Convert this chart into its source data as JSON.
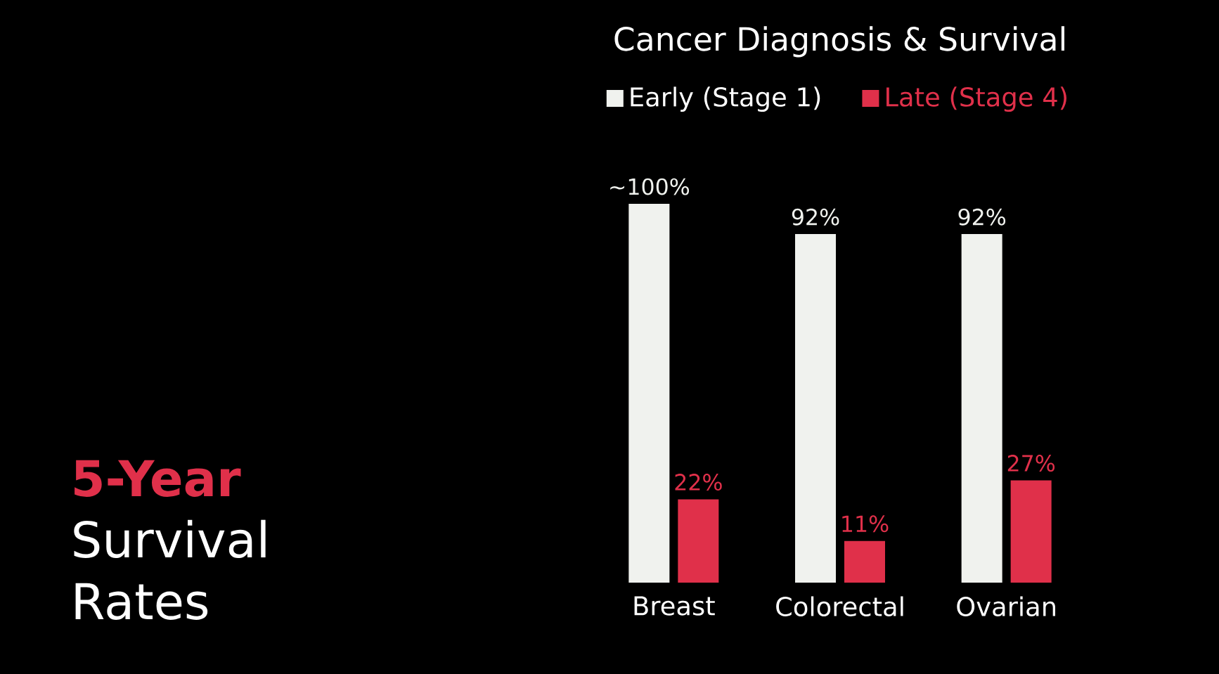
{
  "chart_data": {
    "type": "bar",
    "title": "Cancer Diagnosis & Survival",
    "categories": [
      "Breast",
      "Colorectal",
      "Ovarian"
    ],
    "series": [
      {
        "name": "Early (Stage 1)",
        "color": "#f0f2ee",
        "values": [
          100,
          92,
          92
        ],
        "value_labels": [
          "~100%",
          "92%",
          "92%"
        ]
      },
      {
        "name": "Late (Stage 4)",
        "color": "#e0304a",
        "values": [
          22,
          11,
          27
        ],
        "value_labels": [
          "22%",
          "11%",
          "27%"
        ]
      }
    ],
    "legend": "top",
    "annotations": [
      "5-Year",
      "Survival Rates"
    ]
  }
}
